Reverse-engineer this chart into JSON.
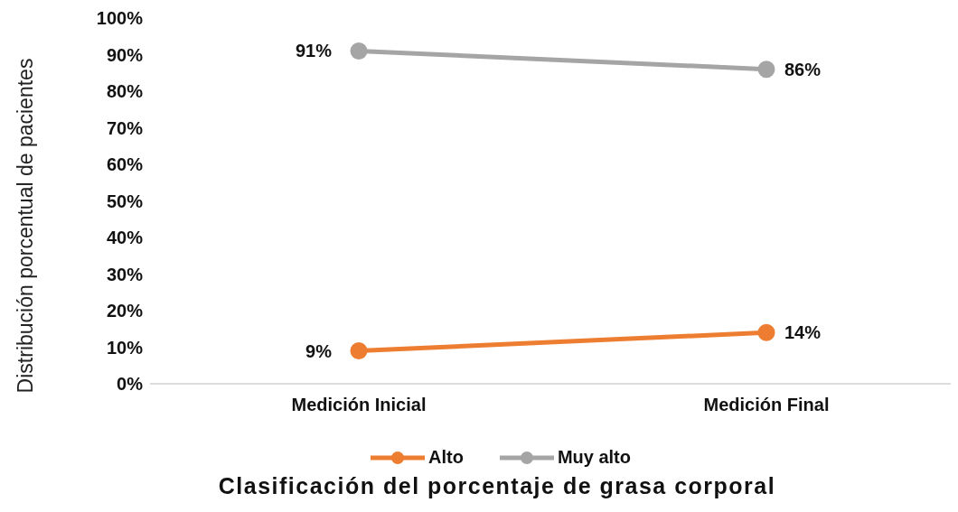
{
  "chart_data": {
    "type": "line",
    "xlabel": "Clasificación del porcentaje de grasa corporal",
    "ylabel": "Distribución porcentual de pacientes",
    "categories": [
      "Medición Inicial",
      "Medición Final"
    ],
    "series": [
      {
        "name": "Alto",
        "color": "#ed7d31",
        "values": [
          9,
          14
        ],
        "value_labels": [
          "9%",
          "14%"
        ]
      },
      {
        "name": "Muy alto",
        "color": "#a5a5a5",
        "values": [
          91,
          86
        ],
        "value_labels": [
          "91%",
          "86%"
        ]
      }
    ],
    "ylim": [
      0,
      100
    ],
    "yticks": [
      {
        "value": 0,
        "label": "0%"
      },
      {
        "value": 10,
        "label": "10%"
      },
      {
        "value": 20,
        "label": "20%"
      },
      {
        "value": 30,
        "label": "30%"
      },
      {
        "value": 40,
        "label": "40%"
      },
      {
        "value": 50,
        "label": "50%"
      },
      {
        "value": 60,
        "label": "60%"
      },
      {
        "value": 70,
        "label": "70%"
      },
      {
        "value": 80,
        "label": "80%"
      },
      {
        "value": 90,
        "label": "90%"
      },
      {
        "value": 100,
        "label": "100%"
      }
    ],
    "grid": false,
    "legend": "bottom",
    "marker": "circle",
    "line_style": "solid"
  }
}
